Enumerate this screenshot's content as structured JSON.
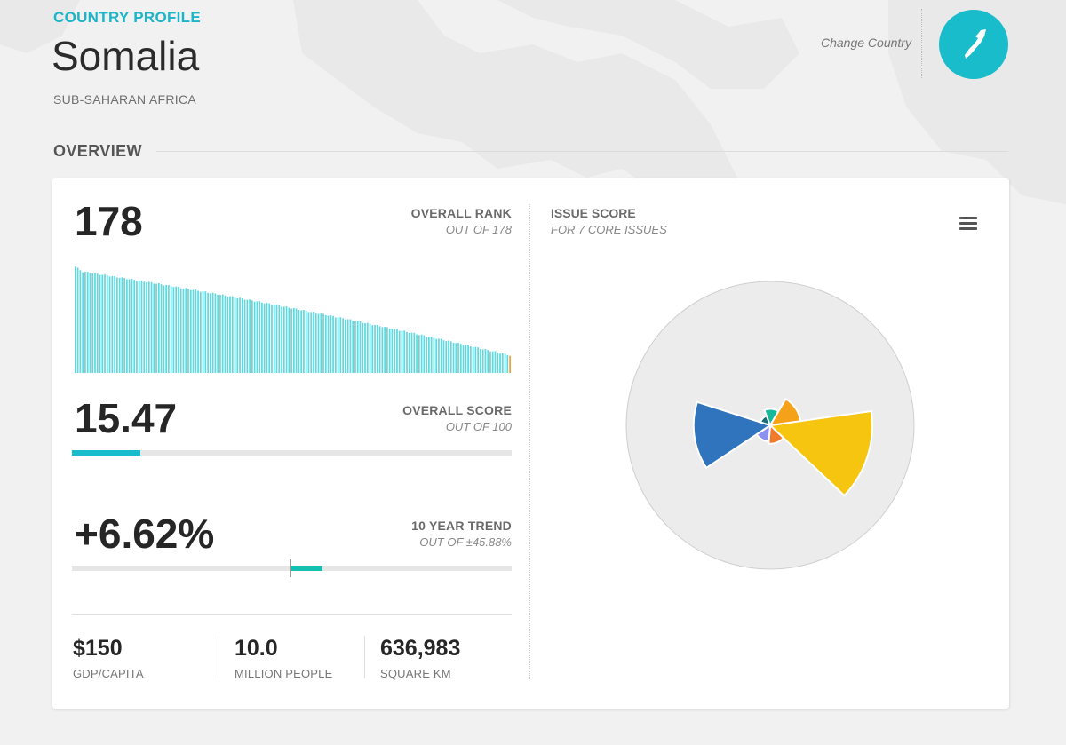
{
  "header": {
    "eyebrow": "COUNTRY PROFILE",
    "country": "Somalia",
    "region": "SUB-SAHARAN AFRICA",
    "change_country": "Change Country",
    "map_icon": "country-shape-icon"
  },
  "overview": {
    "title": "OVERVIEW",
    "rank": {
      "value": "178",
      "label": "OVERALL RANK",
      "sub": "OUT OF 178"
    },
    "score": {
      "value": "15.47",
      "label": "OVERALL SCORE",
      "sub": "OUT OF 100",
      "fraction": 0.1547
    },
    "trend": {
      "value": "+6.62%",
      "label": "10 YEAR TREND",
      "sub": "OUT OF ±45.88%",
      "delta": 6.62,
      "max": 45.88
    },
    "stats": [
      {
        "value": "$150",
        "label": "GDP/CAPITA"
      },
      {
        "value": "10.0",
        "label": "MILLION PEOPLE"
      },
      {
        "value": "636,983",
        "label": "SQUARE KM"
      }
    ]
  },
  "issue_score": {
    "label": "ISSUE SCORE",
    "sub": "FOR 7 CORE ISSUES",
    "menu_icon": "hamburger-menu-icon"
  },
  "chart_data": [
    {
      "type": "bar",
      "title": "",
      "description_note": "",
      "count": 178,
      "ylim": [
        0,
        100
      ],
      "values_start": 93,
      "values_end": 16,
      "highlight_index": 177,
      "bar_color": "#5fd8e0",
      "highlight_color": "#f0a030"
    },
    {
      "type": "pie",
      "title": "",
      "rmax": 100,
      "slices": [
        {
          "value": 100,
          "color": "#f6c510"
        },
        {
          "value": 18,
          "color": "#f07a2a"
        },
        {
          "value": 16,
          "color": "#8b8ff0"
        },
        {
          "value": 75,
          "color": "#2f74bc"
        },
        {
          "value": 10,
          "color": "#166e78"
        },
        {
          "value": 16,
          "color": "#16b99b"
        },
        {
          "value": 30,
          "color": "#f5a11a"
        }
      ],
      "background_color": "#ececec"
    }
  ]
}
